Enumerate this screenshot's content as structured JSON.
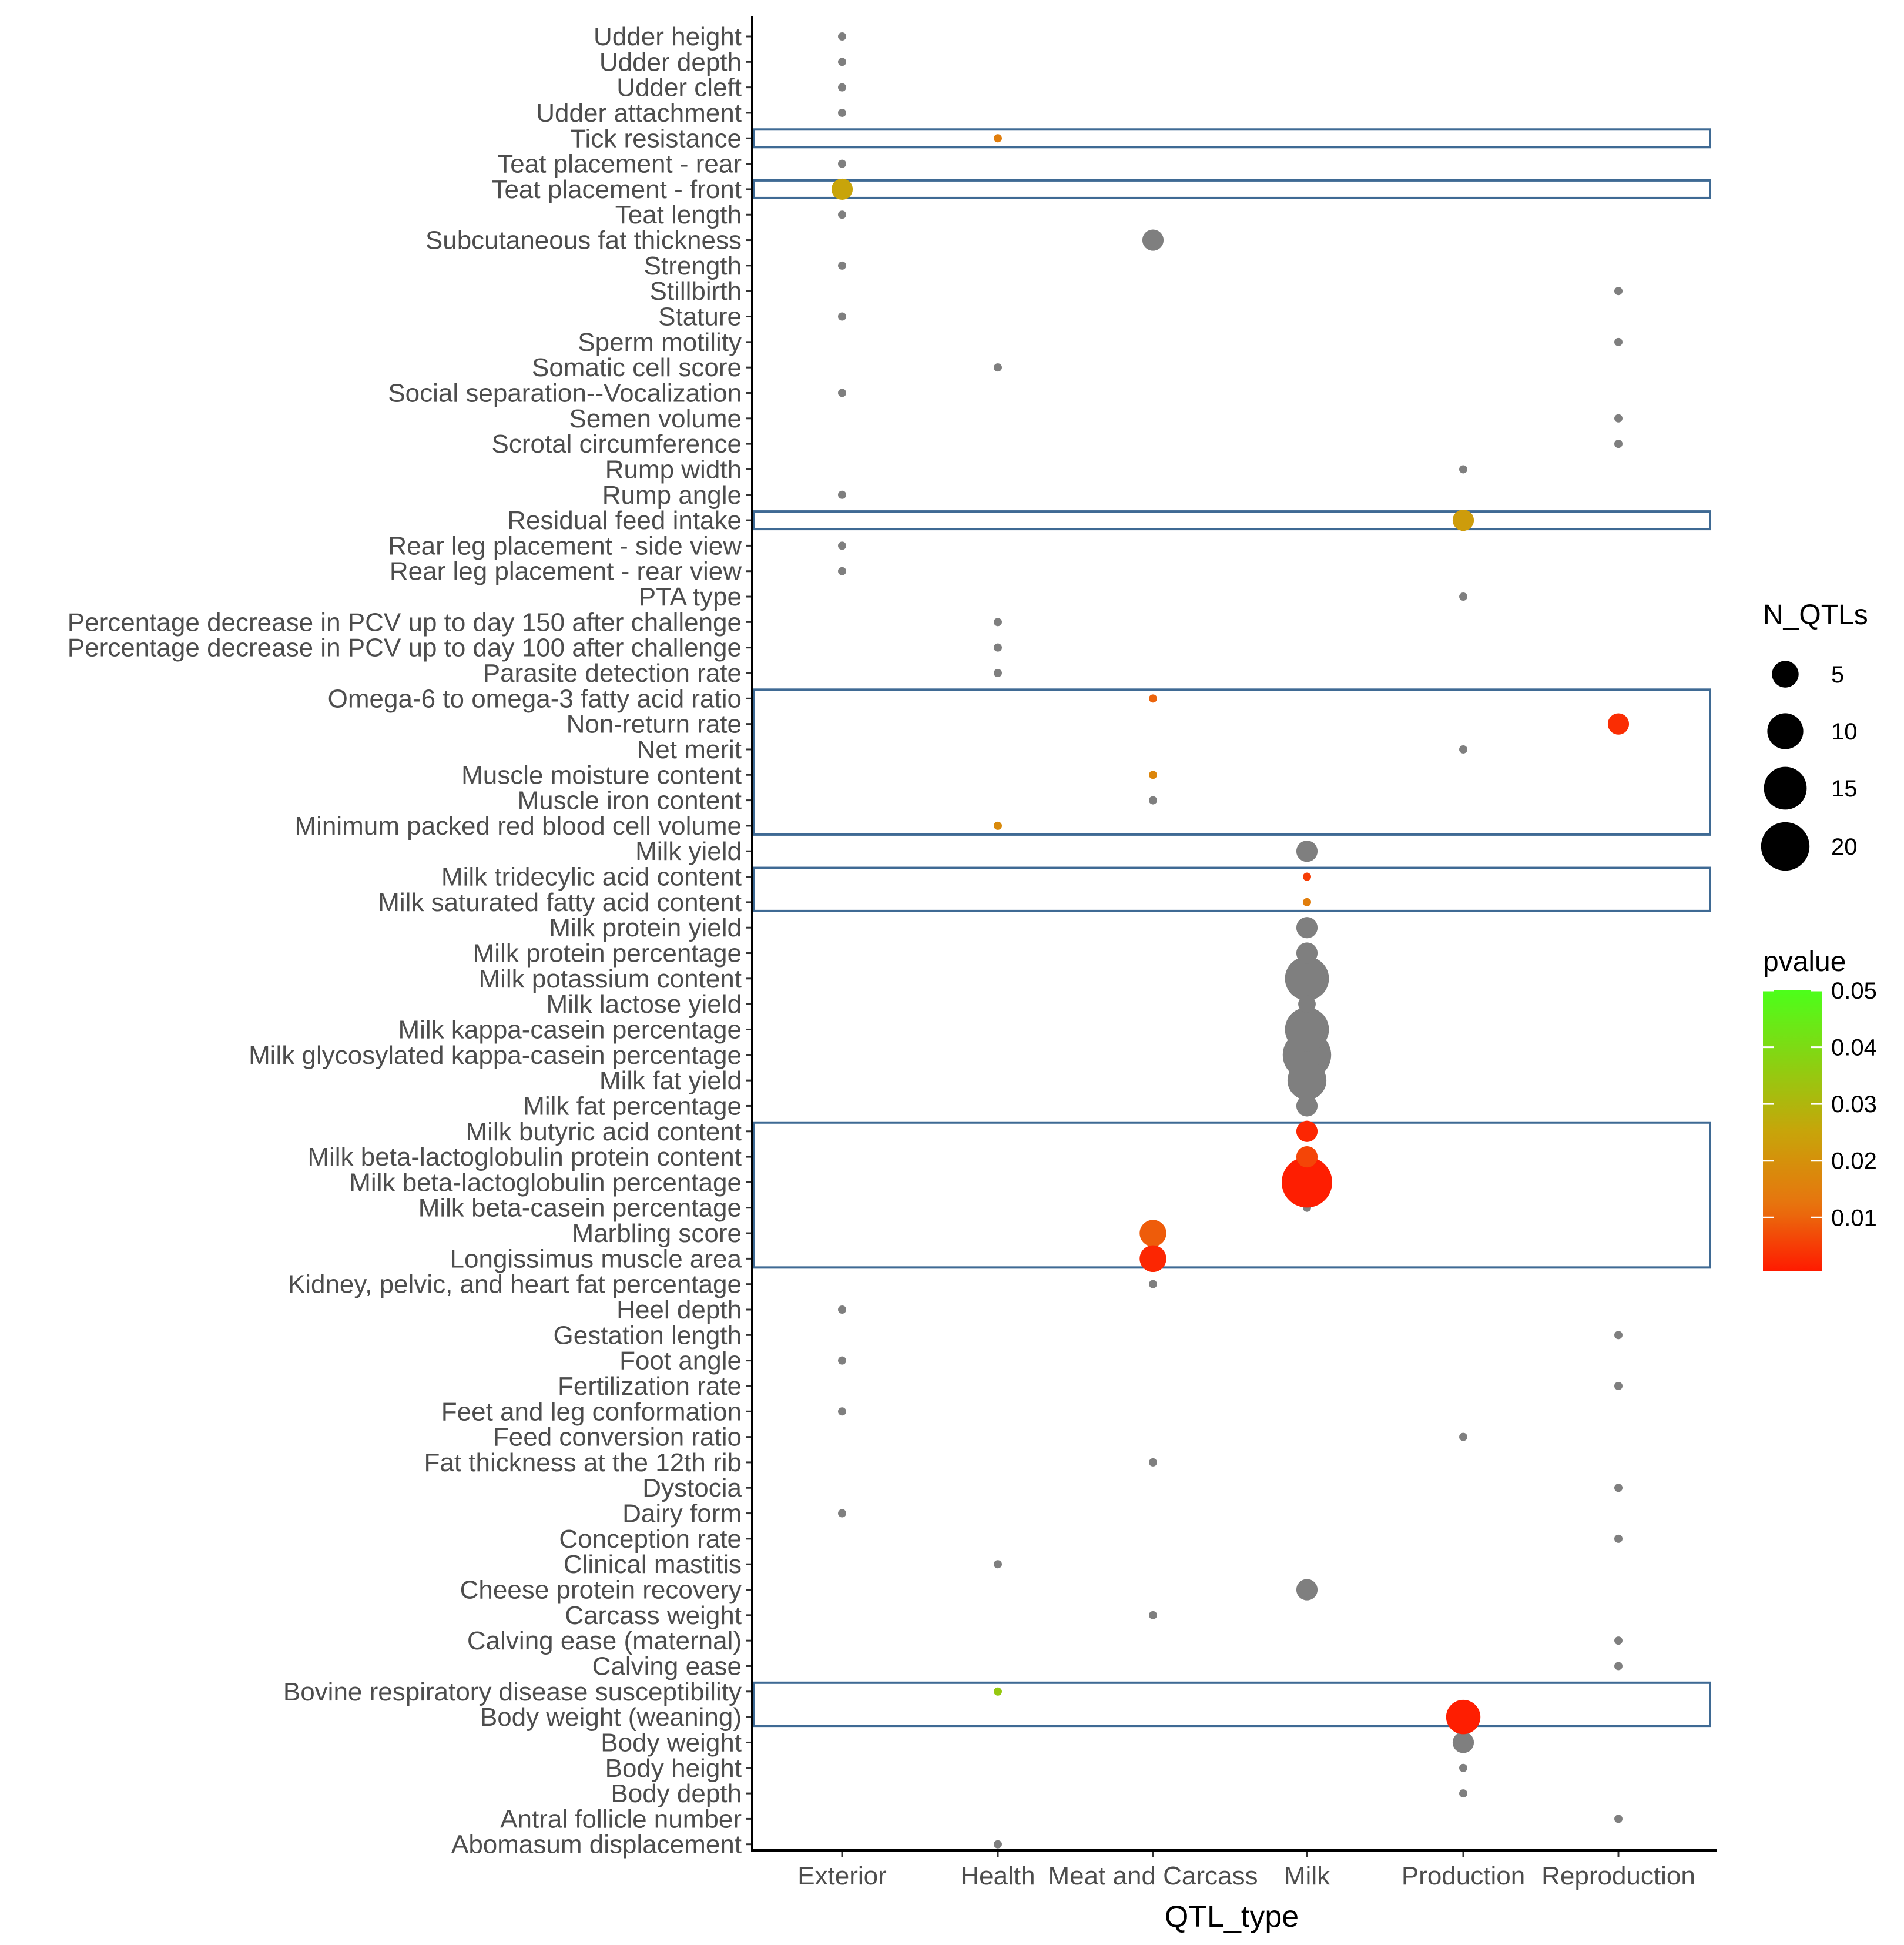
{
  "chart_data": {
    "type": "scatter",
    "xlabel": "QTL_type",
    "ylabel": "",
    "x_categories": [
      "Exterior",
      "Health",
      "Meat and Carcass",
      "Milk",
      "Production",
      "Reproduction"
    ],
    "y_categories": [
      "Udder height",
      "Udder depth",
      "Udder cleft",
      "Udder attachment",
      "Tick resistance",
      "Teat placement - rear",
      "Teat placement - front",
      "Teat length",
      "Subcutaneous fat thickness",
      "Strength",
      "Stillbirth",
      "Stature",
      "Sperm motility",
      "Somatic cell score",
      "Social separation--Vocalization",
      "Semen volume",
      "Scrotal circumference",
      "Rump width",
      "Rump angle",
      "Residual feed intake",
      "Rear leg placement - side view",
      "Rear leg placement - rear view",
      "PTA type",
      "Percentage decrease in PCV up to day 150 after challenge",
      "Percentage decrease in PCV up to day 100 after challenge",
      "Parasite detection rate",
      "Omega-6 to omega-3 fatty acid ratio",
      "Non-return rate",
      "Net merit",
      "Muscle moisture content",
      "Muscle iron content",
      "Minimum packed red blood cell volume",
      "Milk yield",
      "Milk tridecylic acid content",
      "Milk saturated fatty acid content",
      "Milk protein yield",
      "Milk protein percentage",
      "Milk potassium content",
      "Milk lactose yield",
      "Milk kappa-casein percentage",
      "Milk glycosylated kappa-casein percentage",
      "Milk fat yield",
      "Milk fat percentage",
      "Milk butyric acid content",
      "Milk beta-lactoglobulin protein content",
      "Milk beta-lactoglobulin percentage",
      "Milk beta-casein percentage",
      "Marbling score",
      "Longissimus muscle area",
      "Kidney, pelvic, and heart fat percentage",
      "Heel depth",
      "Gestation length",
      "Foot angle",
      "Fertilization rate",
      "Feet and leg conformation",
      "Feed conversion ratio",
      "Fat thickness at the 12th rib",
      "Dystocia",
      "Dairy form",
      "Conception rate",
      "Clinical mastitis",
      "Cheese protein recovery",
      "Carcass weight",
      "Calving ease (maternal)",
      "Calving ease",
      "Bovine respiratory disease susceptibility",
      "Body weight (weaning)",
      "Body weight",
      "Body height",
      "Body depth",
      "Antral follicle number",
      "Abomasum displacement"
    ],
    "points": [
      {
        "trait": "Udder height",
        "qtl_type": "Exterior",
        "n_qtls": 1,
        "pvalue": null
      },
      {
        "trait": "Udder depth",
        "qtl_type": "Exterior",
        "n_qtls": 1,
        "pvalue": null
      },
      {
        "trait": "Udder cleft",
        "qtl_type": "Exterior",
        "n_qtls": 1,
        "pvalue": null
      },
      {
        "trait": "Udder attachment",
        "qtl_type": "Exterior",
        "n_qtls": 1,
        "pvalue": null
      },
      {
        "trait": "Tick resistance",
        "qtl_type": "Health",
        "n_qtls": 1,
        "pvalue": 0.015
      },
      {
        "trait": "Teat placement - rear",
        "qtl_type": "Exterior",
        "n_qtls": 1,
        "pvalue": null
      },
      {
        "trait": "Teat placement - front",
        "qtl_type": "Exterior",
        "n_qtls": 3,
        "pvalue": 0.025
      },
      {
        "trait": "Teat length",
        "qtl_type": "Exterior",
        "n_qtls": 1,
        "pvalue": null
      },
      {
        "trait": "Subcutaneous fat thickness",
        "qtl_type": "Meat and Carcass",
        "n_qtls": 3,
        "pvalue": null
      },
      {
        "trait": "Strength",
        "qtl_type": "Exterior",
        "n_qtls": 1,
        "pvalue": null
      },
      {
        "trait": "Stillbirth",
        "qtl_type": "Reproduction",
        "n_qtls": 1,
        "pvalue": null
      },
      {
        "trait": "Stature",
        "qtl_type": "Exterior",
        "n_qtls": 1,
        "pvalue": null
      },
      {
        "trait": "Sperm motility",
        "qtl_type": "Reproduction",
        "n_qtls": 1,
        "pvalue": null
      },
      {
        "trait": "Somatic cell score",
        "qtl_type": "Health",
        "n_qtls": 1,
        "pvalue": null
      },
      {
        "trait": "Social separation--Vocalization",
        "qtl_type": "Exterior",
        "n_qtls": 1,
        "pvalue": null
      },
      {
        "trait": "Semen volume",
        "qtl_type": "Reproduction",
        "n_qtls": 1,
        "pvalue": null
      },
      {
        "trait": "Scrotal circumference",
        "qtl_type": "Reproduction",
        "n_qtls": 1,
        "pvalue": null
      },
      {
        "trait": "Rump width",
        "qtl_type": "Production",
        "n_qtls": 1,
        "pvalue": null
      },
      {
        "trait": "Rump angle",
        "qtl_type": "Exterior",
        "n_qtls": 1,
        "pvalue": null
      },
      {
        "trait": "Residual feed intake",
        "qtl_type": "Production",
        "n_qtls": 3,
        "pvalue": 0.023
      },
      {
        "trait": "Rear leg placement - side view",
        "qtl_type": "Exterior",
        "n_qtls": 1,
        "pvalue": null
      },
      {
        "trait": "Rear leg placement - rear view",
        "qtl_type": "Exterior",
        "n_qtls": 1,
        "pvalue": null
      },
      {
        "trait": "PTA type",
        "qtl_type": "Production",
        "n_qtls": 1,
        "pvalue": null
      },
      {
        "trait": "Percentage decrease in PCV up to day 150 after challenge",
        "qtl_type": "Health",
        "n_qtls": 1,
        "pvalue": null
      },
      {
        "trait": "Percentage decrease in PCV up to day 100 after challenge",
        "qtl_type": "Health",
        "n_qtls": 1,
        "pvalue": null
      },
      {
        "trait": "Parasite detection rate",
        "qtl_type": "Health",
        "n_qtls": 1,
        "pvalue": null
      },
      {
        "trait": "Omega-6 to omega-3 fatty acid ratio",
        "qtl_type": "Meat and Carcass",
        "n_qtls": 1,
        "pvalue": 0.01
      },
      {
        "trait": "Non-return rate",
        "qtl_type": "Reproduction",
        "n_qtls": 3,
        "pvalue": 0.003
      },
      {
        "trait": "Non-return rate",
        "qtl_type": "Reproduction",
        "n_qtls": 1,
        "pvalue": null
      },
      {
        "trait": "Net merit",
        "qtl_type": "Production",
        "n_qtls": 1,
        "pvalue": null
      },
      {
        "trait": "Muscle moisture content",
        "qtl_type": "Meat and Carcass",
        "n_qtls": 1,
        "pvalue": 0.017
      },
      {
        "trait": "Muscle iron content",
        "qtl_type": "Meat and Carcass",
        "n_qtls": 1,
        "pvalue": null
      },
      {
        "trait": "Minimum packed red blood cell volume",
        "qtl_type": "Health",
        "n_qtls": 1,
        "pvalue": 0.018
      },
      {
        "trait": "Milk yield",
        "qtl_type": "Milk",
        "n_qtls": 3,
        "pvalue": null
      },
      {
        "trait": "Milk tridecylic acid content",
        "qtl_type": "Milk",
        "n_qtls": 1,
        "pvalue": 0.005
      },
      {
        "trait": "Milk saturated fatty acid content",
        "qtl_type": "Milk",
        "n_qtls": 1,
        "pvalue": 0.015
      },
      {
        "trait": "Milk protein yield",
        "qtl_type": "Milk",
        "n_qtls": 3,
        "pvalue": null
      },
      {
        "trait": "Milk protein percentage",
        "qtl_type": "Milk",
        "n_qtls": 3,
        "pvalue": null
      },
      {
        "trait": "Milk potassium content",
        "qtl_type": "Milk",
        "n_qtls": 16,
        "pvalue": null
      },
      {
        "trait": "Milk lactose yield",
        "qtl_type": "Milk",
        "n_qtls": 2,
        "pvalue": null
      },
      {
        "trait": "Milk kappa-casein percentage",
        "qtl_type": "Milk",
        "n_qtls": 16,
        "pvalue": null
      },
      {
        "trait": "Milk glycosylated kappa-casein percentage",
        "qtl_type": "Milk",
        "n_qtls": 20,
        "pvalue": null
      },
      {
        "trait": "Milk fat yield",
        "qtl_type": "Milk",
        "n_qtls": 12,
        "pvalue": null
      },
      {
        "trait": "Milk fat percentage",
        "qtl_type": "Milk",
        "n_qtls": 3,
        "pvalue": null
      },
      {
        "trait": "Milk butyric acid content",
        "qtl_type": "Milk",
        "n_qtls": 3,
        "pvalue": 0.002
      },
      {
        "trait": "Milk beta-lactoglobulin protein content",
        "qtl_type": "Milk",
        "n_qtls": 3,
        "pvalue": 0.006
      },
      {
        "trait": "Milk beta-lactoglobulin percentage",
        "qtl_type": "Milk",
        "n_qtls": 22,
        "pvalue": 0.001
      },
      {
        "trait": "Milk beta-casein percentage",
        "qtl_type": "Milk",
        "n_qtls": 1,
        "pvalue": null
      },
      {
        "trait": "Marbling score",
        "qtl_type": "Meat and Carcass",
        "n_qtls": 5,
        "pvalue": 0.009
      },
      {
        "trait": "Longissimus muscle area",
        "qtl_type": "Meat and Carcass",
        "n_qtls": 5,
        "pvalue": 0.002
      },
      {
        "trait": "Kidney, pelvic, and heart fat percentage",
        "qtl_type": "Meat and Carcass",
        "n_qtls": 1,
        "pvalue": null
      },
      {
        "trait": "Heel depth",
        "qtl_type": "Exterior",
        "n_qtls": 1,
        "pvalue": null
      },
      {
        "trait": "Gestation length",
        "qtl_type": "Reproduction",
        "n_qtls": 1,
        "pvalue": null
      },
      {
        "trait": "Foot angle",
        "qtl_type": "Exterior",
        "n_qtls": 1,
        "pvalue": null
      },
      {
        "trait": "Fertilization rate",
        "qtl_type": "Reproduction",
        "n_qtls": 1,
        "pvalue": null
      },
      {
        "trait": "Feet and leg conformation",
        "qtl_type": "Exterior",
        "n_qtls": 1,
        "pvalue": null
      },
      {
        "trait": "Feed conversion ratio",
        "qtl_type": "Production",
        "n_qtls": 1,
        "pvalue": null
      },
      {
        "trait": "Fat thickness at the 12th rib",
        "qtl_type": "Meat and Carcass",
        "n_qtls": 1,
        "pvalue": null
      },
      {
        "trait": "Dystocia",
        "qtl_type": "Reproduction",
        "n_qtls": 1,
        "pvalue": null
      },
      {
        "trait": "Dairy form",
        "qtl_type": "Exterior",
        "n_qtls": 1,
        "pvalue": null
      },
      {
        "trait": "Conception rate",
        "qtl_type": "Reproduction",
        "n_qtls": 1,
        "pvalue": null
      },
      {
        "trait": "Clinical mastitis",
        "qtl_type": "Health",
        "n_qtls": 1,
        "pvalue": null
      },
      {
        "trait": "Cheese protein recovery",
        "qtl_type": "Milk",
        "n_qtls": 3,
        "pvalue": null
      },
      {
        "trait": "Carcass weight",
        "qtl_type": "Meat and Carcass",
        "n_qtls": 1,
        "pvalue": null
      },
      {
        "trait": "Calving ease (maternal)",
        "qtl_type": "Reproduction",
        "n_qtls": 1,
        "pvalue": null
      },
      {
        "trait": "Calving ease",
        "qtl_type": "Reproduction",
        "n_qtls": 1,
        "pvalue": null
      },
      {
        "trait": "Bovine respiratory disease susceptibility",
        "qtl_type": "Health",
        "n_qtls": 1,
        "pvalue": 0.035
      },
      {
        "trait": "Body weight (weaning)",
        "qtl_type": "Production",
        "n_qtls": 9,
        "pvalue": 0.001
      },
      {
        "trait": "Body weight (weaning)",
        "qtl_type": "Production",
        "n_qtls": 1,
        "pvalue": null
      },
      {
        "trait": "Body weight",
        "qtl_type": "Production",
        "n_qtls": 3,
        "pvalue": null
      },
      {
        "trait": "Body height",
        "qtl_type": "Production",
        "n_qtls": 1,
        "pvalue": null
      },
      {
        "trait": "Body depth",
        "qtl_type": "Production",
        "n_qtls": 1,
        "pvalue": null
      },
      {
        "trait": "Antral follicle number",
        "qtl_type": "Reproduction",
        "n_qtls": 1,
        "pvalue": null
      },
      {
        "trait": "Abomasum displacement",
        "qtl_type": "Health",
        "n_qtls": 1,
        "pvalue": null
      }
    ],
    "highlight_boxes": [
      {
        "from": "Tick resistance",
        "to": "Tick resistance"
      },
      {
        "from": "Teat placement - front",
        "to": "Teat placement - front"
      },
      {
        "from": "Residual feed intake",
        "to": "Residual feed intake"
      },
      {
        "from": "Omega-6 to omega-3 fatty acid ratio",
        "to": "Minimum packed red blood cell volume"
      },
      {
        "from": "Milk tridecylic acid content",
        "to": "Milk saturated fatty acid content"
      },
      {
        "from": "Milk butyric acid content",
        "to": "Longissimus muscle area"
      },
      {
        "from": "Bovine respiratory disease susceptibility",
        "to": "Body weight (weaning)"
      }
    ],
    "colors": {
      "na": "#7f7f7f",
      "box": "#3f6a94",
      "low": "#ff1a00",
      "mid": "#e8730e",
      "midhigh": "#c8a40a",
      "high": "#4cff1a"
    },
    "legend_size": {
      "title": "N_QTLs",
      "values": [
        5,
        10,
        15,
        20
      ],
      "labels": [
        "5",
        "10",
        "15",
        "20"
      ]
    },
    "legend_color": {
      "title": "pvalue",
      "range": [
        0.0005,
        0.05
      ],
      "ticks": [
        0.01,
        0.02,
        0.03,
        0.04,
        0.05
      ],
      "tick_labels": [
        "0.01",
        "0.02",
        "0.03",
        "0.04",
        "0.05"
      ]
    }
  }
}
